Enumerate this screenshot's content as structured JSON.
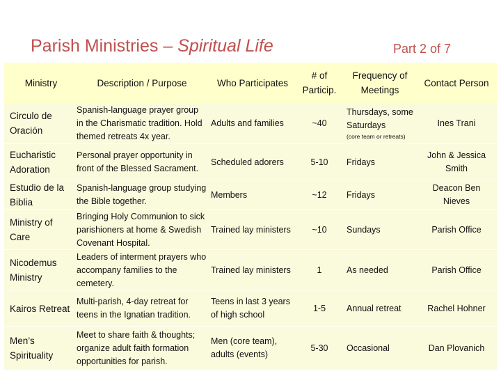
{
  "title": {
    "main": "Parish Ministries – ",
    "italic": "Spiritual Life",
    "part": "Part 2 of 7"
  },
  "table": {
    "headers": {
      "ministry": "Ministry",
      "description": "Description / Purpose",
      "who": "Who Participates",
      "num": "# of Particip.",
      "frequency": "Frequency of Meetings",
      "contact": "Contact Person"
    },
    "rows": [
      {
        "ministry": "Circulo de Oración",
        "description": "Spanish-language prayer group in the Charismatic tradition. Hold themed retreats 4x year.",
        "who": "Adults and families",
        "num": "~40",
        "frequency": "Thursdays, some Saturdays",
        "frequency_note": "(core team or retreats)",
        "contact": "Ines Trani"
      },
      {
        "ministry": "Eucharistic Adoration",
        "description": "Personal prayer opportunity in front of the Blessed Sacrament.",
        "who": "Scheduled adorers",
        "num": "5-10",
        "frequency": "Fridays",
        "contact": "John & Jessica Smith"
      },
      {
        "ministry": "Estudio de la Biblia",
        "description": "Spanish-language group studying the Bible together.",
        "who": "Members",
        "num": "~12",
        "frequency": "Fridays",
        "contact": "Deacon Ben Nieves"
      },
      {
        "ministry": "Ministry of Care",
        "description": "Bringing Holy Communion to sick parishioners at home & Swedish Covenant Hospital.",
        "who": "Trained lay ministers",
        "num": "~10",
        "frequency": "Sundays",
        "contact": "Parish Office"
      },
      {
        "ministry": "Nicodemus Ministry",
        "description": "Leaders of interment prayers who accompany families to the cemetery.",
        "who": "Trained lay ministers",
        "num": "1",
        "frequency": "As needed",
        "contact": "Parish Office"
      },
      {
        "ministry": "Kairos Retreat",
        "description": "Multi-parish, 4-day retreat for teens in the Ignatian tradition.",
        "who": "Teens in last 3 years of high school",
        "num": "1-5",
        "frequency": "Annual retreat",
        "contact": "Rachel Hohner"
      },
      {
        "ministry": "Men’s Spirituality",
        "description": "Meet to share faith & thoughts; organize adult faith formation opportunities for parish.",
        "who": "Men (core team), adults (events)",
        "num": "5-30",
        "frequency": "Occasional",
        "contact": "Dan Plovanich"
      }
    ]
  },
  "colors": {
    "title": "#c0504d",
    "header_bg": "#ffffcc",
    "row_shade": "#fafadc"
  }
}
